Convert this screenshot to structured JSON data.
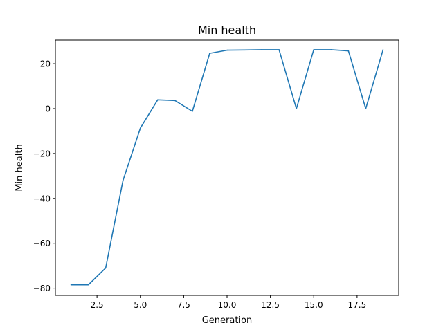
{
  "chart_data": {
    "type": "line",
    "title": "Min health",
    "xlabel": "Generation",
    "ylabel": "Min health",
    "xlim": [
      0.1,
      19.9
    ],
    "ylim": [
      -83.2,
      30.5
    ],
    "x_ticks": [
      2.5,
      5.0,
      7.5,
      10.0,
      12.5,
      15.0,
      17.5
    ],
    "x_tick_labels": [
      "2.5",
      "5.0",
      "7.5",
      "10.0",
      "12.5",
      "15.0",
      "17.5"
    ],
    "y_ticks": [
      -80,
      -60,
      -40,
      -20,
      0,
      20
    ],
    "y_tick_labels": [
      "−80",
      "−60",
      "−40",
      "−20",
      "0",
      "20"
    ],
    "grid": false,
    "legend": "none",
    "series": [
      {
        "color": "#1f77b4",
        "x": [
          1,
          2,
          3,
          4,
          5,
          6,
          7,
          8,
          9,
          10,
          11,
          12,
          13,
          14,
          15,
          16,
          17,
          18,
          19
        ],
        "y": [
          -78.5,
          -78.5,
          -71.0,
          -32.0,
          -8.7,
          3.9,
          3.6,
          -1.2,
          24.6,
          26.0,
          26.1,
          26.2,
          26.2,
          0.0,
          26.2,
          26.2,
          25.7,
          0.0,
          26.2
        ]
      }
    ]
  }
}
